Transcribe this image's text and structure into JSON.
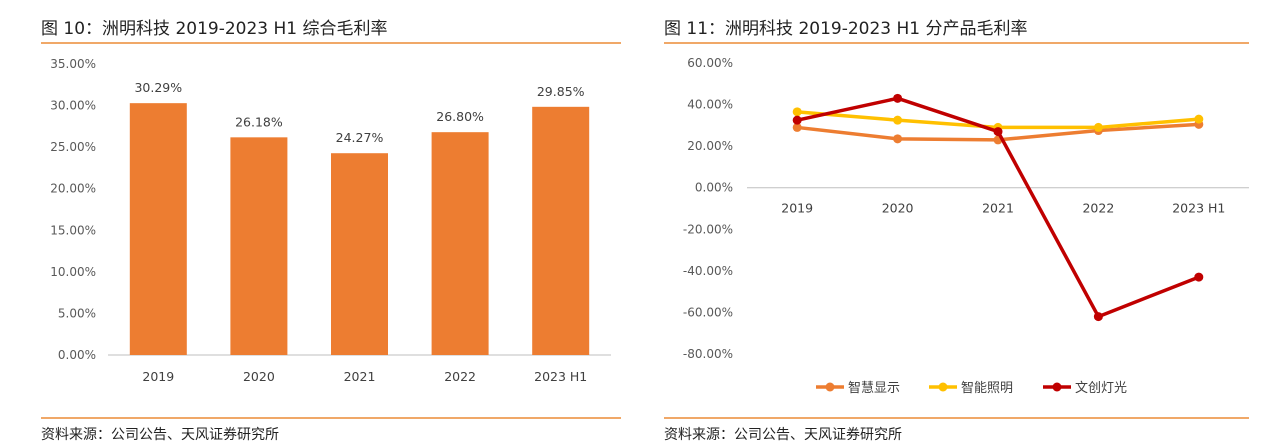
{
  "panels": [
    {
      "title": "图 10：洲明科技 2019-2023 H1 综合毛利率",
      "source": "资料来源：公司公告、天风证券研究所"
    },
    {
      "title": "图 11：洲明科技 2019-2023 H1 分产品毛利率",
      "source": "资料来源：公司公告、天风证券研究所"
    }
  ],
  "chart_data": [
    {
      "type": "bar",
      "categories": [
        "2019",
        "2020",
        "2021",
        "2022",
        "2023 H1"
      ],
      "values": [
        30.29,
        26.18,
        24.27,
        26.8,
        29.85
      ],
      "data_labels": [
        "30.29%",
        "26.18%",
        "24.27%",
        "26.80%",
        "29.85%"
      ],
      "ylim": [
        0,
        35
      ],
      "yticks": [
        0,
        5,
        10,
        15,
        20,
        25,
        30,
        35
      ],
      "ytick_labels": [
        "0.00%",
        "5.00%",
        "10.00%",
        "15.00%",
        "20.00%",
        "25.00%",
        "30.00%",
        "35.00%"
      ],
      "grid": false,
      "color": "#ed7d31"
    },
    {
      "type": "line",
      "categories": [
        "2019",
        "2020",
        "2021",
        "2022",
        "2023 H1"
      ],
      "series": [
        {
          "name": "智慧显示",
          "values": [
            29.0,
            23.5,
            23.0,
            27.5,
            30.5
          ],
          "color": "#ed7d31"
        },
        {
          "name": "智能照明",
          "values": [
            36.5,
            32.5,
            29.0,
            29.0,
            33.0
          ],
          "color": "#ffc000"
        },
        {
          "name": "文创灯光",
          "values": [
            32.5,
            43.0,
            27.0,
            -62.0,
            -43.0
          ],
          "color": "#c00000"
        }
      ],
      "ylim": [
        -80,
        60
      ],
      "yticks": [
        60,
        40,
        20,
        0,
        -20,
        -40,
        -60,
        -80
      ],
      "ytick_labels": [
        "60.00%",
        "40.00%",
        "20.00%",
        "0.00%",
        "-20.00%",
        "-40.00%",
        "-60.00%",
        "-80.00%"
      ],
      "grid": false,
      "legend_position": "bottom"
    }
  ]
}
